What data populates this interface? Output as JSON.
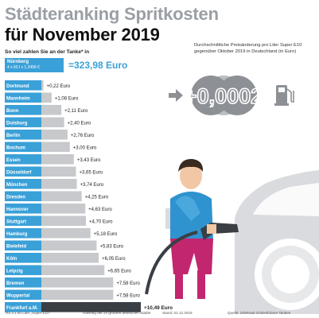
{
  "header": {
    "title_line1": "Städteranking Spritkosten",
    "title_line2": "für November 2019",
    "subtitle": "So viel zahlen Sie an der Tanke* in",
    "reference_city": "Nürnberg",
    "reference_calc": "4 x 60 l x 1,3499 €",
    "reference_total": "=323,98 Euro"
  },
  "price_change": {
    "note": "Durchschnittliche Preisänderung pro Liter Super E10 gegenüber Oktober 2019 in Deutschland (in Euro)",
    "value": "+0,0002",
    "icons": [
      "arrow-right-icon",
      "fuel-pump-icon",
      "refuel-person-illustration",
      "car-illustration"
    ]
  },
  "footer": {
    "note1": "*für 4 x 60 Liter „Super E10\"",
    "note2": "Ranking der 20 größten deutschen Städte",
    "note3": "Stand: 01.12.2019",
    "source": "Quelle: infoRoad GmbH/Clever Tanken"
  },
  "colors": {
    "accent_blue": "#3aa0d8",
    "bar_gray": "#c7c9cc",
    "highlight_bar": "#3a3f45",
    "title_gray": "#9a9fa5"
  },
  "chart_data": {
    "type": "bar",
    "orientation": "horizontal",
    "categories": [
      "Dortmund",
      "Mannheim",
      "Bonn",
      "Duisburg",
      "Berlin",
      "Bochum",
      "Essen",
      "Düsseldorf",
      "München",
      "Dresden",
      "Hannover",
      "Stuttgart",
      "Hamburg",
      "Bielefeld",
      "Köln",
      "Leipzig",
      "Bremen",
      "Wuppertal",
      "Frankfurt a.M."
    ],
    "values": [
      0.22,
      1.08,
      2.11,
      2.4,
      2.76,
      3.0,
      3.43,
      3.65,
      3.74,
      4.25,
      4.63,
      4.7,
      5.18,
      5.83,
      6.05,
      6.65,
      7.58,
      7.58,
      10.49
    ],
    "labels": [
      "+0,22 Euro",
      "+1,08 Euro",
      "+2,11 Euro",
      "+2,40 Euro",
      "+2,76 Euro",
      "+3,00 Euro",
      "+3,43 Euro",
      "+3,65 Euro",
      "+3,74 Euro",
      "+4,25 Euro",
      "+4,63 Euro",
      "+4,70 Euro",
      "+5,18 Euro",
      "+5,83 Euro",
      "+6,05 Euro",
      "+6,65 Euro",
      "+7,58 Euro",
      "+7,58 Euro",
      "+10,49 Euro"
    ],
    "highlight": "Frankfurt a.M."
  }
}
